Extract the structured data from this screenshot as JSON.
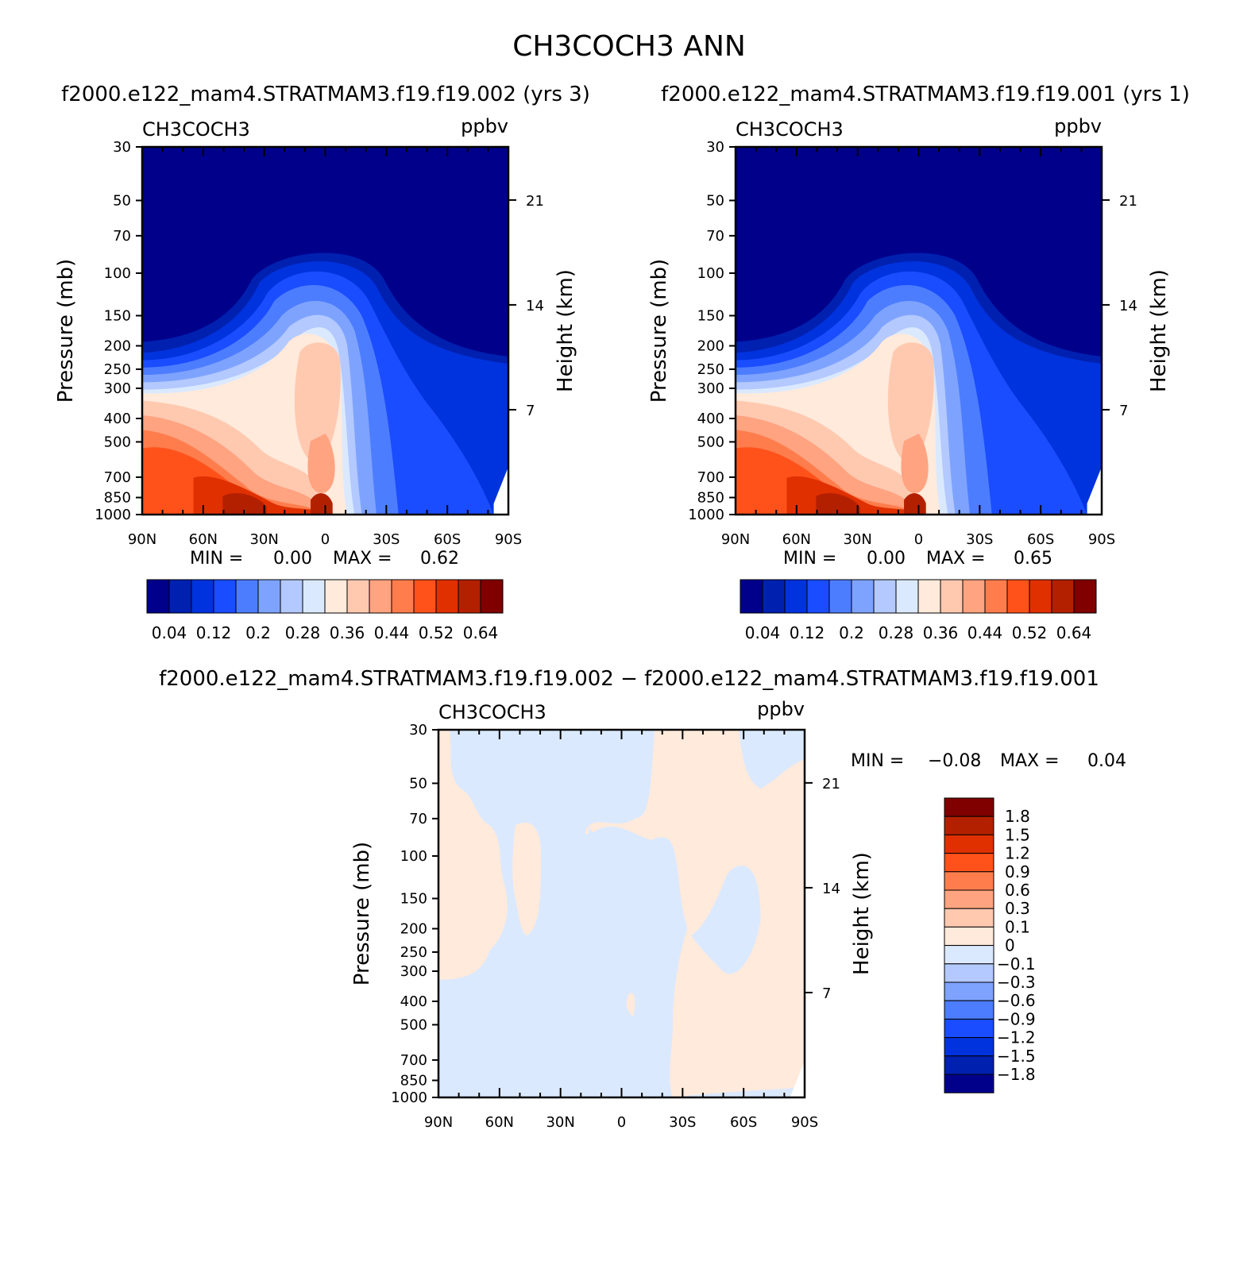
{
  "figure": {
    "title": "CH3COCH3 ANN",
    "subtitle_left": "f2000.e122_mam4.STRATMAM3.f19.f19.002 (yrs 3)",
    "subtitle_right": "f2000.e122_mam4.STRATMAM3.f19.f19.001 (yrs 1)",
    "diff_title": "f2000.e122_mam4.STRATMAM3.f19.f19.002 − f2000.e122_mam4.STRATMAM3.f19.f19.001"
  },
  "colors": {
    "levels16": [
      "#00008b",
      "#0020b0",
      "#0033dd",
      "#1a4dff",
      "#4d7dff",
      "#7ea3ff",
      "#b3c9ff",
      "#dbe9ff",
      "#ffeadb",
      "#ffc9b0",
      "#ffa380",
      "#ff7d4d",
      "#ff521a",
      "#e03000",
      "#b32000",
      "#800000"
    ]
  },
  "chart_data": [
    {
      "type": "heatmap",
      "panel": "left",
      "variable_label": "CH3COCH3",
      "units": "ppbv",
      "xlabel": "",
      "ylabel": "Pressure (mb)",
      "ylabel_right": "Height (km)",
      "x_ticks": [
        "90N",
        "60N",
        "30N",
        "0",
        "30S",
        "60S",
        "90S"
      ],
      "y_ticks": [
        30,
        50,
        70,
        100,
        150,
        200,
        250,
        300,
        400,
        500,
        700,
        850,
        1000
      ],
      "y_right_ticks": [
        21,
        14,
        7
      ],
      "ylim": [
        1000,
        30
      ],
      "y_scale": "log",
      "min_label": "MIN =",
      "min_value": "0.00",
      "max_label": "MAX =",
      "max_value": "0.62",
      "colorbar_labels": [
        "0.04",
        "0.12",
        "0.2",
        "0.28",
        "0.36",
        "0.44",
        "0.52",
        "0.64"
      ]
    },
    {
      "type": "heatmap",
      "panel": "right",
      "variable_label": "CH3COCH3",
      "units": "ppbv",
      "xlabel": "",
      "ylabel": "Pressure (mb)",
      "ylabel_right": "Height (km)",
      "x_ticks": [
        "90N",
        "60N",
        "30N",
        "0",
        "30S",
        "60S",
        "90S"
      ],
      "y_ticks": [
        30,
        50,
        70,
        100,
        150,
        200,
        250,
        300,
        400,
        500,
        700,
        850,
        1000
      ],
      "y_right_ticks": [
        21,
        14,
        7
      ],
      "ylim": [
        1000,
        30
      ],
      "y_scale": "log",
      "min_label": "MIN =",
      "min_value": "0.00",
      "max_label": "MAX =",
      "max_value": "0.65",
      "colorbar_labels": [
        "0.04",
        "0.12",
        "0.2",
        "0.28",
        "0.36",
        "0.44",
        "0.52",
        "0.64"
      ]
    },
    {
      "type": "heatmap",
      "panel": "difference",
      "variable_label": "CH3COCH3",
      "units": "ppbv",
      "xlabel": "",
      "ylabel": "Pressure (mb)",
      "ylabel_right": "Height (km)",
      "x_ticks": [
        "90N",
        "60N",
        "30N",
        "0",
        "30S",
        "60S",
        "90S"
      ],
      "y_ticks": [
        30,
        50,
        70,
        100,
        150,
        200,
        250,
        300,
        400,
        500,
        700,
        850,
        1000
      ],
      "y_right_ticks": [
        21,
        14,
        7
      ],
      "ylim": [
        1000,
        30
      ],
      "y_scale": "log",
      "min_label": "MIN =",
      "min_value": "−0.08",
      "max_label": "MAX =",
      "max_value": "0.04",
      "colorbar_labels": [
        "1.8",
        "1.5",
        "1.2",
        "0.9",
        "0.6",
        "0.3",
        "0.1",
        "0",
        "−0.1",
        "−0.3",
        "−0.6",
        "−0.9",
        "−1.2",
        "−1.5",
        "−1.8"
      ]
    }
  ]
}
